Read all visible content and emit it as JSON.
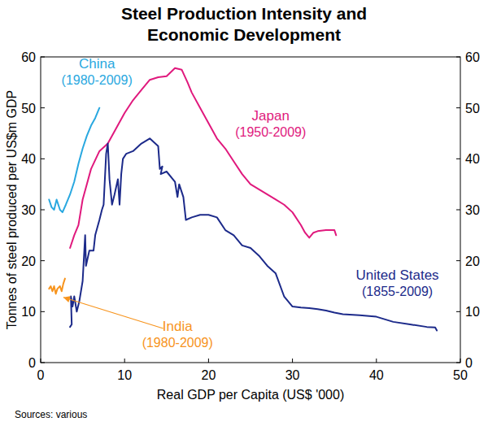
{
  "chart_data": {
    "type": "line",
    "title": "Steel Production Intensity and Economic Development",
    "x_label": "Real GDP per Capita (US$ '000)",
    "y_label": "Tonnes of steel produced per US$m GDP",
    "source": "Sources: various",
    "xlim": [
      0,
      50
    ],
    "xticks": [
      0,
      10,
      20,
      30,
      40,
      50
    ],
    "ylim": [
      0,
      60
    ],
    "yticks": [
      0,
      10,
      20,
      30,
      40,
      50,
      60
    ],
    "y2lim": [
      0,
      60
    ],
    "y2ticks": [
      0,
      10,
      20,
      30,
      40,
      50,
      60
    ],
    "grid": false,
    "series": [
      {
        "name": "China",
        "annotation": "(1980-2009)",
        "color": "#29a8e0",
        "x": [
          1.0,
          1.3,
          1.6,
          1.9,
          2.3,
          2.6,
          3.0,
          3.5,
          4.0,
          4.5,
          5.0,
          5.5,
          6.0,
          6.5,
          7.0
        ],
        "values": [
          32,
          30.5,
          30,
          32,
          30,
          29.5,
          31,
          33,
          35.5,
          39,
          42,
          44.5,
          46.5,
          48,
          50
        ]
      },
      {
        "name": "Japan",
        "annotation": "(1950-2009)",
        "color": "#e0197d",
        "x": [
          3.5,
          4.0,
          4.5,
          5,
          5.5,
          6,
          7,
          8,
          9,
          10,
          11,
          12,
          13,
          14,
          15,
          15.5,
          16,
          16.8,
          17.5,
          18,
          19,
          20,
          21,
          22,
          23,
          24,
          25,
          26,
          27,
          28,
          29,
          30,
          31,
          31.5,
          32,
          32.5,
          33,
          34,
          35,
          35.2
        ],
        "values": [
          22.5,
          25,
          27,
          32,
          35,
          38,
          41.5,
          43,
          46,
          49,
          51.5,
          53.5,
          55.5,
          56,
          56.2,
          57,
          57.8,
          57.5,
          55,
          53,
          50,
          47,
          44,
          42,
          39.5,
          37,
          35,
          34,
          33,
          32,
          31,
          29.5,
          27,
          25.5,
          24.5,
          25.5,
          25.8,
          26,
          26,
          25
        ]
      },
      {
        "name": "United States",
        "annotation": "(1855-2009)",
        "color": "#1c2a8a",
        "x": [
          3.5,
          3.7,
          3.6,
          3.8,
          4.0,
          4.3,
          4.6,
          5.0,
          5.2,
          5.3,
          5.4,
          5.8,
          6.3,
          6.5,
          7.0,
          7.3,
          7.5,
          7.8,
          8.0,
          8.2,
          8.5,
          8.8,
          9.2,
          9.4,
          9.6,
          9.8,
          10.2,
          11,
          12,
          13,
          14,
          14.2,
          14.5,
          14.3,
          15,
          16,
          16.3,
          16.5,
          17,
          17.3,
          18,
          19,
          20,
          21,
          22,
          23,
          24,
          25,
          26,
          27,
          28,
          29,
          30,
          31,
          32,
          33,
          34,
          35,
          36,
          38,
          40,
          42,
          44,
          46,
          47,
          47.2
        ],
        "values": [
          7,
          7.5,
          13,
          11,
          13,
          10,
          12,
          16,
          22,
          25,
          19,
          22,
          22,
          25,
          28,
          30,
          31,
          41,
          43,
          36,
          31,
          33,
          36,
          31,
          37,
          40,
          41,
          41.5,
          43,
          44,
          42.5,
          38,
          38.5,
          37,
          37.5,
          35.5,
          32.5,
          35,
          32.5,
          28,
          28.5,
          29,
          29,
          28.5,
          26,
          25,
          23,
          22.5,
          21,
          19,
          17.5,
          13,
          11,
          10.8,
          10.7,
          10.5,
          10.2,
          9.8,
          9.5,
          9.3,
          9,
          8,
          7.5,
          7,
          6.9,
          6.3
        ]
      },
      {
        "name": "India",
        "annotation": "(1980-2009)",
        "color": "#f7941d",
        "x": [
          1.0,
          1.2,
          1.4,
          1.6,
          1.8,
          2.0,
          2.3,
          2.5,
          2.7,
          2.9
        ],
        "values": [
          14.5,
          15,
          14,
          15,
          13.5,
          14.5,
          15,
          14,
          15.5,
          16.5
        ]
      }
    ]
  }
}
